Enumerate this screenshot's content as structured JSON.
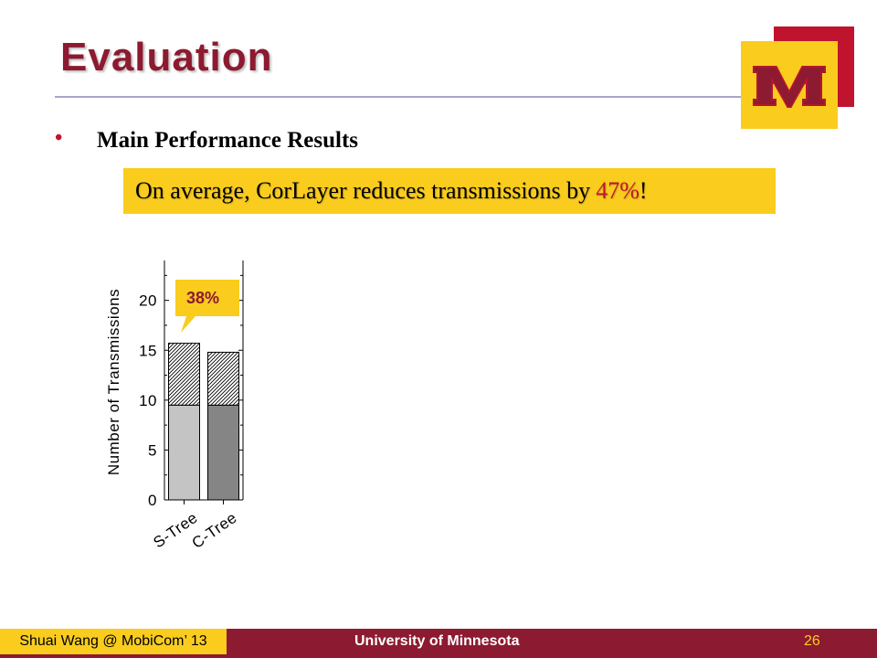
{
  "slide": {
    "title": "Evaluation",
    "bullet": "Main Performance Results",
    "callout": {
      "text": "On average, CorLayer reduces transmissions by",
      "highlight": "47%",
      "suffix": "!"
    },
    "annotation": "38%"
  },
  "footer": {
    "author": "Shuai Wang @ MobiCom’ 13",
    "institution": "University of Minnesota",
    "page": "26"
  },
  "colors": {
    "maroon": "#8c1a30",
    "gold": "#f9cc1e",
    "red": "#c0142e"
  },
  "logo": {
    "icon": "university-m-logo-icon"
  },
  "chart_data": {
    "type": "bar",
    "stacked": true,
    "categories": [
      "S-Tree",
      "C-Tree"
    ],
    "series": [
      {
        "values": [
          9.5,
          9.5
        ],
        "fills": [
          "#c4c4c4",
          "#858585"
        ]
      },
      {
        "values": [
          6.2,
          5.3
        ],
        "pattern": "hatched"
      }
    ],
    "ylabel": "Number of Transmissions",
    "xlabel": "",
    "ylim": [
      0,
      24
    ],
    "yticks": [
      0,
      5,
      10,
      15,
      20
    ],
    "grid": false
  }
}
